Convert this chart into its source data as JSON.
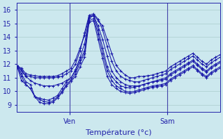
{
  "title": "",
  "xlabel": "Température (°c)",
  "ylabel": "",
  "bg_color": "#cce8ee",
  "grid_color": "#aacccc",
  "line_color": "#1a1aaa",
  "ylim": [
    8.5,
    16.5
  ],
  "xlim": [
    0,
    46
  ],
  "yticks": [
    9,
    10,
    11,
    12,
    13,
    14,
    15,
    16
  ],
  "xtick_positions": [
    12,
    34
  ],
  "xtick_labels": [
    "Ven",
    "Sam"
  ],
  "series": [
    [
      11.9,
      11.7,
      11.3,
      11.2,
      11.15,
      11.1,
      11.1,
      11.1,
      11.1,
      11.15,
      11.3,
      11.5,
      11.7,
      12.3,
      13.2,
      14.1,
      15.5,
      15.6,
      15.2,
      14.8,
      13.8,
      12.8,
      11.9,
      11.5,
      11.2,
      11.0,
      11.0,
      11.1,
      11.1,
      11.15,
      11.2,
      11.3,
      11.4,
      11.5,
      11.8,
      12.0,
      12.2,
      12.4,
      12.6,
      12.8,
      12.5,
      12.2,
      12.0,
      12.3,
      12.5,
      12.7
    ],
    [
      11.9,
      11.6,
      11.15,
      11.1,
      11.0,
      11.0,
      11.0,
      11.0,
      11.0,
      11.05,
      11.1,
      11.3,
      11.5,
      12.0,
      13.0,
      14.3,
      15.6,
      15.7,
      15.3,
      14.5,
      13.3,
      12.2,
      11.5,
      11.1,
      10.9,
      10.8,
      10.7,
      10.7,
      10.8,
      10.9,
      11.0,
      11.1,
      11.2,
      11.3,
      11.6,
      11.8,
      12.0,
      12.2,
      12.4,
      12.6,
      12.3,
      12.0,
      11.8,
      12.1,
      12.3,
      12.5
    ],
    [
      11.9,
      11.5,
      11.1,
      10.8,
      10.6,
      10.5,
      10.4,
      10.4,
      10.4,
      10.5,
      10.6,
      10.8,
      11.0,
      11.6,
      12.5,
      13.5,
      15.4,
      15.55,
      14.8,
      13.8,
      12.6,
      11.5,
      11.0,
      10.7,
      10.5,
      10.4,
      10.4,
      10.4,
      10.5,
      10.6,
      10.7,
      10.8,
      10.9,
      11.0,
      11.3,
      11.5,
      11.7,
      11.9,
      12.1,
      12.3,
      12.0,
      11.7,
      11.5,
      11.8,
      12.0,
      12.2
    ],
    [
      11.9,
      11.3,
      10.7,
      10.5,
      9.6,
      9.5,
      9.4,
      9.35,
      9.5,
      9.7,
      10.2,
      10.7,
      11.0,
      11.5,
      12.3,
      13.0,
      15.4,
      15.6,
      14.5,
      13.2,
      11.8,
      11.1,
      10.7,
      10.4,
      10.3,
      10.25,
      10.3,
      10.4,
      10.5,
      10.6,
      10.7,
      10.75,
      10.8,
      10.9,
      11.2,
      11.4,
      11.6,
      11.8,
      12.0,
      12.2,
      11.9,
      11.6,
      11.4,
      11.7,
      11.9,
      12.1
    ],
    [
      11.9,
      11.1,
      10.5,
      10.2,
      9.6,
      9.4,
      9.25,
      9.2,
      9.3,
      9.6,
      10.0,
      10.5,
      10.85,
      11.3,
      12.1,
      12.8,
      15.2,
      15.35,
      14.2,
      12.8,
      11.5,
      10.8,
      10.4,
      10.2,
      10.0,
      9.95,
      10.0,
      10.1,
      10.2,
      10.3,
      10.4,
      10.45,
      10.5,
      10.6,
      10.9,
      11.1,
      11.3,
      11.5,
      11.7,
      11.9,
      11.6,
      11.3,
      11.1,
      11.4,
      11.6,
      11.8
    ],
    [
      11.9,
      10.8,
      10.5,
      10.2,
      9.6,
      9.2,
      9.1,
      9.1,
      9.2,
      9.5,
      9.9,
      10.4,
      10.75,
      11.1,
      11.8,
      12.5,
      15.1,
      15.2,
      13.8,
      12.4,
      11.1,
      10.5,
      10.2,
      10.0,
      9.9,
      9.85,
      9.9,
      10.0,
      10.1,
      10.2,
      10.3,
      10.35,
      10.4,
      10.5,
      10.8,
      11.0,
      11.2,
      11.4,
      11.6,
      11.8,
      11.5,
      11.2,
      11.0,
      11.3,
      11.5,
      11.7
    ]
  ]
}
